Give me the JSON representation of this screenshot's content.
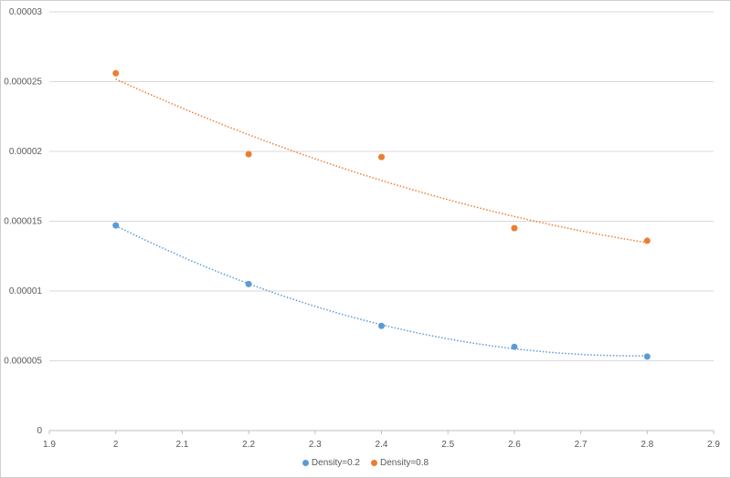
{
  "chart_data": {
    "type": "scatter",
    "title": "",
    "xlabel": "",
    "ylabel": "",
    "xlim": [
      1.9,
      2.9
    ],
    "ylim": [
      0,
      3e-05
    ],
    "x_ticks": [
      "1.9",
      "2",
      "2.1",
      "2.2",
      "2.3",
      "2.4",
      "2.5",
      "2.6",
      "2.7",
      "2.8",
      "2.9"
    ],
    "y_ticks": [
      "0",
      "0.000005",
      "0.00001",
      "0.000015",
      "0.00002",
      "0.000025",
      "0.00003"
    ],
    "grid": "horizontal",
    "trendline": "polynomial-2 dotted",
    "legend_position": "bottom",
    "series": [
      {
        "name": "Density=0.2",
        "color": "#5b9bd5",
        "x": [
          2.0,
          2.2,
          2.4,
          2.6,
          2.8
        ],
        "y": [
          1.47e-05,
          1.05e-05,
          7.5e-06,
          6e-06,
          5.3e-06
        ]
      },
      {
        "name": "Density=0.8",
        "color": "#ed7d31",
        "x": [
          2.0,
          2.2,
          2.4,
          2.6,
          2.8
        ],
        "y": [
          2.56e-05,
          1.98e-05,
          1.96e-05,
          1.45e-05,
          1.36e-05
        ]
      }
    ]
  }
}
